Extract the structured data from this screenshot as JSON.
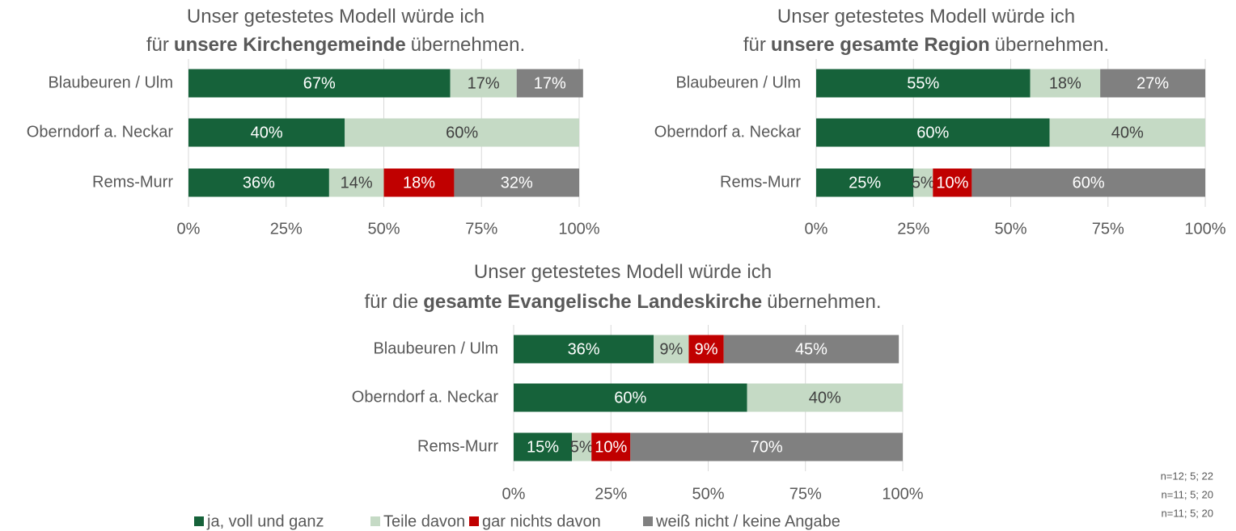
{
  "chart_data": [
    {
      "type": "stacked-bar-horizontal",
      "title_lines": [
        [
          {
            "text": "Unser getestetes Modell würde ich"
          }
        ],
        [
          {
            "text": "für"
          },
          {
            "text": "unsere Kirchengemeinde",
            "bold": true
          },
          {
            "text": "übernehmen."
          }
        ]
      ],
      "categories": [
        "Blaubeuren / Ulm",
        "Oberndorf a. Neckar",
        "Rems-Murr"
      ],
      "series": [
        {
          "values": [
            67,
            40,
            36
          ],
          "value_labels": [
            "67%",
            "40%",
            "36%"
          ]
        },
        {
          "values": [
            17,
            60,
            14
          ],
          "value_labels": [
            "17%",
            "60%",
            "14%"
          ]
        },
        {
          "values": [
            0,
            0,
            18
          ],
          "value_labels": [
            null,
            null,
            "18%"
          ]
        },
        {
          "values": [
            17,
            0,
            32
          ],
          "value_labels": [
            "17%",
            null,
            "32%"
          ]
        }
      ],
      "xlim": [
        0,
        100
      ],
      "xticks": [
        {
          "value": 0,
          "label": "0%"
        },
        {
          "value": 25,
          "label": "25%"
        },
        {
          "value": 50,
          "label": "50%"
        },
        {
          "value": 75,
          "label": "75%"
        },
        {
          "value": 100,
          "label": "100%"
        }
      ],
      "grid": true
    },
    {
      "type": "stacked-bar-horizontal",
      "title_lines": [
        [
          {
            "text": "Unser getestetes Modell würde ich"
          }
        ],
        [
          {
            "text": "für"
          },
          {
            "text": "unsere gesamte Region",
            "bold": true
          },
          {
            "text": "übernehmen."
          }
        ]
      ],
      "categories": [
        "Blaubeuren / Ulm",
        "Oberndorf a. Neckar",
        "Rems-Murr"
      ],
      "series": [
        {
          "values": [
            55,
            60,
            25
          ],
          "value_labels": [
            "55%",
            "60%",
            "25%"
          ]
        },
        {
          "values": [
            18,
            40,
            5
          ],
          "value_labels": [
            "18%",
            "40%",
            "5%"
          ]
        },
        {
          "values": [
            0,
            0,
            10
          ],
          "value_labels": [
            null,
            null,
            "10%"
          ]
        },
        {
          "values": [
            27,
            0,
            60
          ],
          "value_labels": [
            "27%",
            null,
            "60%"
          ]
        }
      ],
      "xlim": [
        0,
        100
      ],
      "xticks": [
        {
          "value": 0,
          "label": "0%"
        },
        {
          "value": 25,
          "label": "25%"
        },
        {
          "value": 50,
          "label": "50%"
        },
        {
          "value": 75,
          "label": "75%"
        },
        {
          "value": 100,
          "label": "100%"
        }
      ],
      "grid": true
    },
    {
      "type": "stacked-bar-horizontal",
      "title_lines": [
        [
          {
            "text": "Unser getestetes Modell würde ich"
          }
        ],
        [
          {
            "text": "für die"
          },
          {
            "text": "gesamte Evangelische Landeskirche",
            "bold": true
          },
          {
            "text": "übernehmen."
          }
        ]
      ],
      "categories": [
        "Blaubeuren / Ulm",
        "Oberndorf a. Neckar",
        "Rems-Murr"
      ],
      "series": [
        {
          "values": [
            36,
            60,
            15
          ],
          "value_labels": [
            "36%",
            "60%",
            "15%"
          ]
        },
        {
          "values": [
            9,
            40,
            5
          ],
          "value_labels": [
            "9%",
            "40%",
            "5%"
          ]
        },
        {
          "values": [
            9,
            0,
            10
          ],
          "value_labels": [
            "9%",
            null,
            "10%"
          ]
        },
        {
          "values": [
            45,
            0,
            70
          ],
          "value_labels": [
            "45%",
            null,
            "70%"
          ]
        }
      ],
      "xlim": [
        0,
        100
      ],
      "xticks": [
        {
          "value": 0,
          "label": "0%"
        },
        {
          "value": 25,
          "label": "25%"
        },
        {
          "value": 50,
          "label": "50%"
        },
        {
          "value": 75,
          "label": "75%"
        },
        {
          "value": 100,
          "label": "100%"
        }
      ],
      "grid": true
    }
  ],
  "legend": {
    "position": "bottom",
    "series": [
      {
        "name": "ja, voll und ganz",
        "color": "#16623a",
        "label_color": "#ffffff"
      },
      {
        "name": "Teile davon",
        "color": "#c5dac5",
        "label_color": "#404040"
      },
      {
        "name": "gar nichts davon",
        "color": "#c00000",
        "label_color": "#ffffff"
      },
      {
        "name": "weiß nicht / keine Angabe",
        "color": "#808080",
        "label_color": "#ffffff"
      }
    ]
  },
  "notes": [
    "n=12; 5; 22",
    "n=11; 5; 20",
    "n=11; 5; 20"
  ]
}
